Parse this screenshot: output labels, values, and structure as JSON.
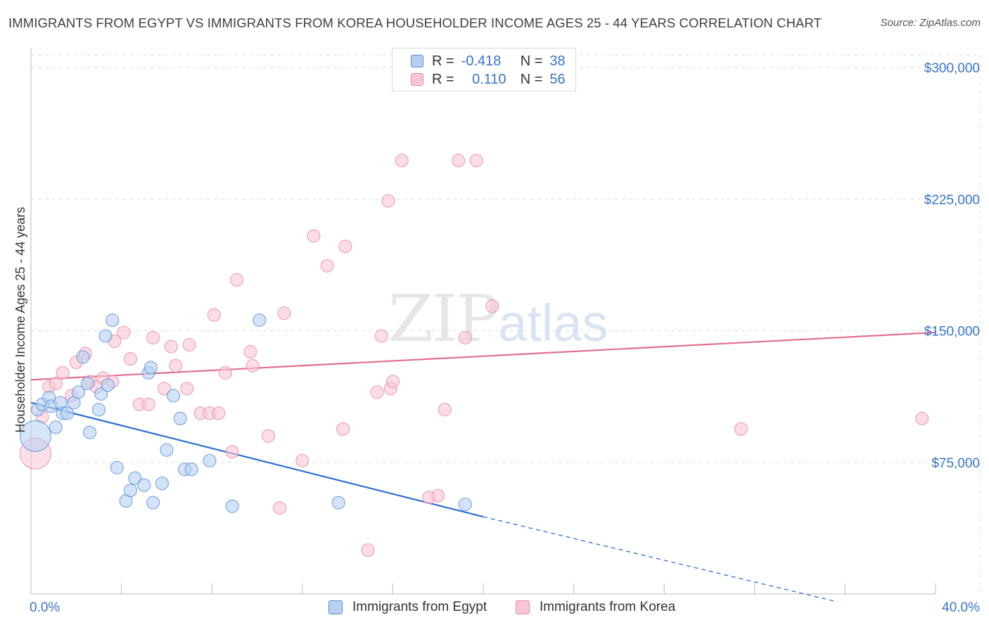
{
  "title": "IMMIGRANTS FROM EGYPT VS IMMIGRANTS FROM KOREA HOUSEHOLDER INCOME AGES 25 - 44 YEARS CORRELATION CHART",
  "source": "Source: ZipAtlas.com",
  "watermark": {
    "zip": "ZIP",
    "atlas": "atlas"
  },
  "legend": {
    "egypt": {
      "r_label": "R =",
      "r_value": "-0.418",
      "n_label": "N =",
      "n_value": "38"
    },
    "korea": {
      "r_label": "R =",
      "r_value": "0.110",
      "n_label": "N =",
      "n_value": "56"
    }
  },
  "colors": {
    "egypt_fill": "#b7d0f2",
    "egypt_stroke": "#5a8fd6",
    "egypt_line": "#2f6fcf",
    "korea_fill": "#f8c6d5",
    "korea_stroke": "#e88aa6",
    "korea_line": "#e0708f",
    "tick_text": "#3a74c4",
    "grid": "#dddddd"
  },
  "chart_data": {
    "type": "scatter",
    "title": "IMMIGRANTS FROM EGYPT VS IMMIGRANTS FROM KOREA HOUSEHOLDER INCOME AGES 25 - 44 YEARS CORRELATION CHART",
    "xlabel": "",
    "ylabel": "Householder Income Ages 25 - 44 years",
    "xlim": [
      0,
      40
    ],
    "ylim": [
      0,
      300000
    ],
    "x_tick_labels": [
      "0.0%",
      "40.0%"
    ],
    "y_ticks": [
      75000,
      150000,
      225000,
      300000
    ],
    "y_tick_labels": [
      "$75,000",
      "$150,000",
      "$225,000",
      "$300,000"
    ],
    "legend_position": "top-center",
    "series": [
      {
        "name": "Immigrants from Egypt",
        "r": -0.418,
        "n": 38,
        "trend": {
          "x0": 0,
          "y0": 109000,
          "x1": 20,
          "y1": 44000,
          "dashed_to_x": 35.5,
          "dashed_to_y": -4000
        },
        "points": [
          {
            "x": 0.2,
            "y": 90000,
            "big": true
          },
          {
            "x": 0.3,
            "y": 105000
          },
          {
            "x": 0.5,
            "y": 108000
          },
          {
            "x": 0.8,
            "y": 112000
          },
          {
            "x": 0.9,
            "y": 107000
          },
          {
            "x": 1.1,
            "y": 95000
          },
          {
            "x": 1.3,
            "y": 109000
          },
          {
            "x": 1.4,
            "y": 103000
          },
          {
            "x": 1.6,
            "y": 103000
          },
          {
            "x": 1.9,
            "y": 109000
          },
          {
            "x": 2.1,
            "y": 115000
          },
          {
            "x": 2.3,
            "y": 135000
          },
          {
            "x": 2.5,
            "y": 120000
          },
          {
            "x": 2.6,
            "y": 92000
          },
          {
            "x": 3.0,
            "y": 105000
          },
          {
            "x": 3.1,
            "y": 114000
          },
          {
            "x": 3.3,
            "y": 147000
          },
          {
            "x": 3.4,
            "y": 119000
          },
          {
            "x": 3.6,
            "y": 156000
          },
          {
            "x": 3.8,
            "y": 72000
          },
          {
            "x": 4.2,
            "y": 53000
          },
          {
            "x": 4.4,
            "y": 59000
          },
          {
            "x": 4.6,
            "y": 66000
          },
          {
            "x": 5.0,
            "y": 62000
          },
          {
            "x": 5.2,
            "y": 126000
          },
          {
            "x": 5.3,
            "y": 129000
          },
          {
            "x": 5.4,
            "y": 52000
          },
          {
            "x": 5.8,
            "y": 63000
          },
          {
            "x": 6.0,
            "y": 82000
          },
          {
            "x": 6.3,
            "y": 113000
          },
          {
            "x": 6.6,
            "y": 100000
          },
          {
            "x": 6.8,
            "y": 71000
          },
          {
            "x": 7.1,
            "y": 71000
          },
          {
            "x": 7.9,
            "y": 76000
          },
          {
            "x": 8.9,
            "y": 50000
          },
          {
            "x": 10.1,
            "y": 156000
          },
          {
            "x": 13.6,
            "y": 52000
          },
          {
            "x": 19.2,
            "y": 51000
          }
        ]
      },
      {
        "name": "Immigrants from Korea",
        "r": 0.11,
        "n": 56,
        "trend": {
          "x0": 0,
          "y0": 122000,
          "x1": 40,
          "y1": 149000
        },
        "points": [
          {
            "x": 0.2,
            "y": 80000,
            "big": true
          },
          {
            "x": 0.5,
            "y": 101000
          },
          {
            "x": 0.8,
            "y": 118000
          },
          {
            "x": 1.1,
            "y": 120000
          },
          {
            "x": 1.4,
            "y": 126000
          },
          {
            "x": 1.8,
            "y": 113000
          },
          {
            "x": 2.0,
            "y": 132000
          },
          {
            "x": 2.4,
            "y": 137000
          },
          {
            "x": 2.6,
            "y": 121000
          },
          {
            "x": 2.9,
            "y": 118000
          },
          {
            "x": 3.2,
            "y": 123000
          },
          {
            "x": 3.6,
            "y": 121000
          },
          {
            "x": 3.7,
            "y": 144000
          },
          {
            "x": 4.1,
            "y": 149000
          },
          {
            "x": 4.4,
            "y": 134000
          },
          {
            "x": 4.8,
            "y": 108000
          },
          {
            "x": 5.2,
            "y": 108000
          },
          {
            "x": 5.4,
            "y": 146000
          },
          {
            "x": 5.9,
            "y": 117000
          },
          {
            "x": 6.2,
            "y": 141000
          },
          {
            "x": 6.4,
            "y": 130000
          },
          {
            "x": 6.9,
            "y": 117000
          },
          {
            "x": 7.0,
            "y": 142000
          },
          {
            "x": 7.5,
            "y": 103000
          },
          {
            "x": 7.9,
            "y": 103000
          },
          {
            "x": 8.1,
            "y": 159000
          },
          {
            "x": 8.3,
            "y": 103000
          },
          {
            "x": 8.6,
            "y": 126000
          },
          {
            "x": 8.9,
            "y": 81000
          },
          {
            "x": 9.1,
            "y": 179000
          },
          {
            "x": 9.7,
            "y": 138000
          },
          {
            "x": 9.8,
            "y": 130000
          },
          {
            "x": 10.5,
            "y": 90000
          },
          {
            "x": 11.2,
            "y": 160000
          },
          {
            "x": 11.0,
            "y": 49000
          },
          {
            "x": 12.0,
            "y": 76000
          },
          {
            "x": 12.5,
            "y": 204000
          },
          {
            "x": 13.1,
            "y": 187000
          },
          {
            "x": 13.8,
            "y": 94000
          },
          {
            "x": 13.9,
            "y": 198000
          },
          {
            "x": 14.9,
            "y": 25000
          },
          {
            "x": 15.3,
            "y": 115000
          },
          {
            "x": 15.5,
            "y": 147000
          },
          {
            "x": 15.8,
            "y": 224000
          },
          {
            "x": 15.9,
            "y": 117000
          },
          {
            "x": 16.0,
            "y": 121000
          },
          {
            "x": 16.4,
            "y": 247000
          },
          {
            "x": 17.6,
            "y": 55000
          },
          {
            "x": 18.0,
            "y": 56000
          },
          {
            "x": 18.3,
            "y": 105000
          },
          {
            "x": 18.9,
            "y": 247000
          },
          {
            "x": 19.2,
            "y": 146000
          },
          {
            "x": 19.7,
            "y": 247000
          },
          {
            "x": 20.4,
            "y": 164000
          },
          {
            "x": 31.4,
            "y": 94000
          },
          {
            "x": 39.4,
            "y": 100000
          }
        ]
      }
    ]
  }
}
